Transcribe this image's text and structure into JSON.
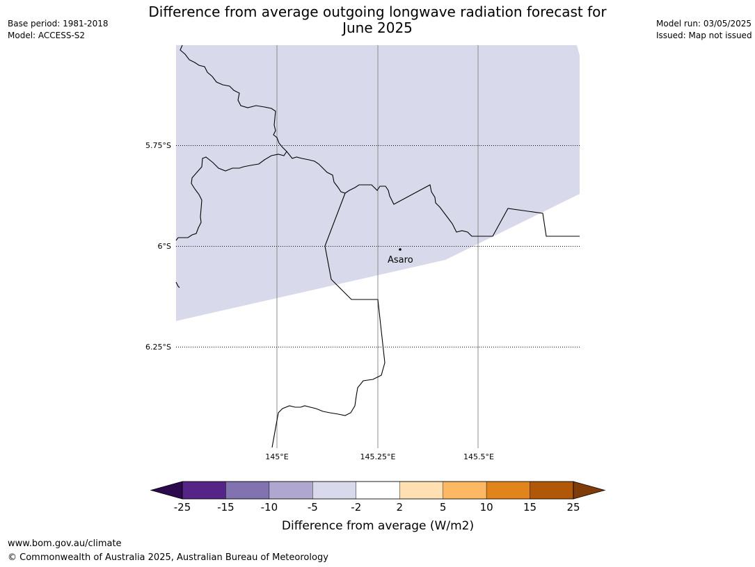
{
  "title": "Difference from average outgoing longwave radiation forecast for June 2025",
  "title_lines": [
    "Difference from average outgoing longwave radiation forecast for",
    "June 2025"
  ],
  "meta_left": {
    "base_period": "Base period: 1981-2018",
    "model": "Model: ACCESS-S2"
  },
  "meta_right": {
    "model_run": "Model run: 03/05/2025",
    "issued": "Issued: Map not issued"
  },
  "map": {
    "lat_labels": [
      "5.75°S",
      "6°S",
      "6.25°S"
    ],
    "lon_labels": [
      "145°E",
      "145.25°E",
      "145.5°E"
    ],
    "place": {
      "name": "Asaro",
      "lat": -6.01,
      "lon": 145.3
    },
    "shaded_category": "-5 to -2",
    "shaded_color": "#d8d9ea"
  },
  "colorbar": {
    "label": "Difference from average (W/m2)",
    "ticks": [
      "-25",
      "-15",
      "-10",
      "-5",
      "-2",
      "2",
      "5",
      "10",
      "15",
      "25"
    ],
    "colors": [
      "#552487",
      "#8272b0",
      "#afa7d0",
      "#d8d9ea",
      "#ffffff",
      "#fee0b2",
      "#fcb862",
      "#e2841c",
      "#b15708"
    ],
    "extend_low_color": "#2d0a4e",
    "extend_high_color": "#7f3b08"
  },
  "footer": {
    "url": "www.bom.gov.au/climate",
    "copyright": "© Commonwealth of Australia 2025, Australian Bureau of Meteorology"
  }
}
